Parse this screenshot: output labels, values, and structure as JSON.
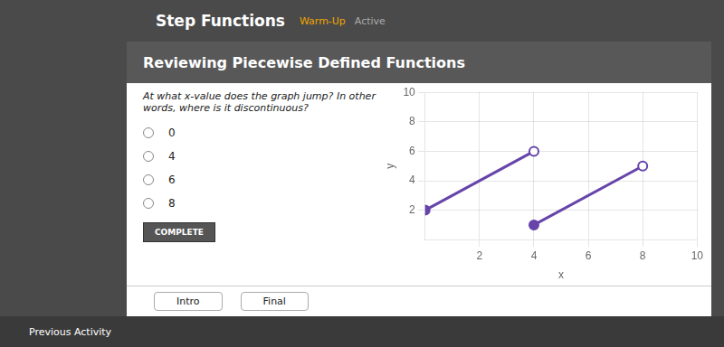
{
  "chart_data": {
    "type": "line",
    "title": "Step Functions",
    "subtitle": "Warm-Up",
    "annotations": [
      "Active",
      "Reviewing Piecewise Defined Functions",
      "At what x-value does the graph jump? In other\nwords, where is it discontinuous?",
      "0",
      "4",
      "6",
      "8",
      "COMPLETE",
      "Intro",
      "Final",
      "Previous Activity"
    ],
    "x_label": "x",
    "y_label": "y",
    "color": "#6644aa",
    "series": [
      {
        "x": [
          0,
          4
        ],
        "values": [
          2,
          6
        ],
        "marker": "filled_open"
      },
      {
        "x": [
          4,
          8
        ],
        "values": [
          1,
          5
        ],
        "marker": "filled_open"
      }
    ],
    "xlim": [
      0,
      10
    ],
    "ylim": [
      0,
      10
    ],
    "xticks": [
      2,
      4,
      6,
      8,
      10
    ],
    "yticks": [
      2,
      4,
      6,
      8,
      10
    ],
    "grid": true
  }
}
